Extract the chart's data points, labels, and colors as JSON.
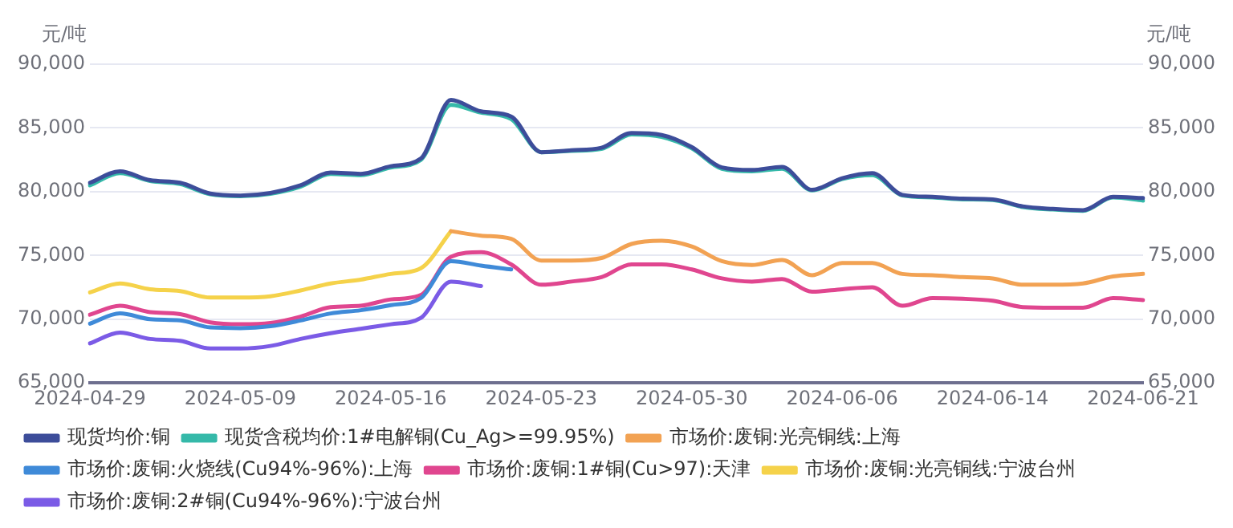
{
  "chart_data": {
    "type": "line",
    "ylabel": "元/吨",
    "y2label": "元/吨",
    "categories": [
      "2024-04-29",
      null,
      null,
      null,
      null,
      "2024-05-09",
      null,
      null,
      null,
      null,
      "2024-05-16",
      null,
      null,
      null,
      null,
      "2024-05-23",
      null,
      null,
      null,
      null,
      "2024-05-30",
      null,
      null,
      null,
      null,
      "2024-06-06",
      null,
      null,
      null,
      null,
      "2024-06-14",
      null,
      null,
      null,
      null,
      "2024-06-21"
    ],
    "ylim": [
      65000,
      90000
    ],
    "yticks": [
      {
        "value": 65000,
        "label": "65,000"
      },
      {
        "value": 70000,
        "label": "70,000"
      },
      {
        "value": 75000,
        "label": "75,000"
      },
      {
        "value": 80000,
        "label": "80,000"
      },
      {
        "value": 85000,
        "label": "85,000"
      },
      {
        "value": 90000,
        "label": "90,000"
      }
    ],
    "y2lim": [
      65000,
      90000
    ],
    "y2ticks": [
      {
        "value": 65000,
        "label": "65,000"
      },
      {
        "value": 70000,
        "label": "70,000"
      },
      {
        "value": 75000,
        "label": "75,000"
      },
      {
        "value": 80000,
        "label": "80,000"
      },
      {
        "value": 85000,
        "label": "85,000"
      },
      {
        "value": 90000,
        "label": "90,000"
      }
    ],
    "grid": "y",
    "legend": "bottom",
    "marker": "none",
    "line_style": "solid",
    "series": [
      {
        "name": "现货均价:铜",
        "color": "#3d4d9a",
        "values": [
          80700,
          81600,
          80900,
          80700,
          79850,
          79700,
          79900,
          80500,
          81500,
          81400,
          82000,
          82600,
          87200,
          86300,
          85900,
          83100,
          83250,
          83450,
          84600,
          84450,
          83500,
          81900,
          81700,
          81950,
          80150,
          81050,
          81450,
          79750,
          79600,
          79450,
          79400,
          78850,
          78650,
          78550,
          79600,
          79500
        ]
      },
      {
        "name": "现货含税均价:1#电解铜(Cu_Ag>=99.95%)",
        "color": "#35b9a9",
        "values": [
          80500,
          81460,
          80840,
          80600,
          79800,
          79650,
          79840,
          80400,
          81400,
          81300,
          81900,
          82500,
          86800,
          86200,
          85700,
          83100,
          83200,
          83350,
          84500,
          84300,
          83400,
          81800,
          81600,
          81800,
          80100,
          81000,
          81300,
          79700,
          79550,
          79400,
          79350,
          78800,
          78600,
          78500,
          79550,
          79300
        ]
      },
      {
        "name": "市场价:废铜:光亮铜线:上海",
        "color": "#f2a253",
        "values": [
          null,
          null,
          null,
          null,
          null,
          null,
          null,
          null,
          null,
          null,
          null,
          null,
          76900,
          76550,
          76300,
          74600,
          74600,
          74800,
          75900,
          76150,
          75700,
          74550,
          74250,
          74650,
          73450,
          74400,
          74400,
          73550,
          73450,
          73300,
          73200,
          72700,
          72700,
          72800,
          73350,
          73550
        ]
      },
      {
        "name": "市场价:废铜:火烧线(Cu94%-96%):上海",
        "color": "#3f8ad8",
        "values": [
          69650,
          70450,
          70000,
          69900,
          69350,
          69300,
          69450,
          69900,
          70450,
          70700,
          71100,
          71650,
          74550,
          74200,
          73900,
          null,
          null,
          null,
          null,
          null,
          null,
          null,
          null,
          null,
          null,
          null,
          null,
          null,
          null,
          null,
          null,
          null,
          null,
          null,
          null,
          null
        ]
      },
      {
        "name": "市场价:废铜:1#铜(Cu>97):天津",
        "color": "#e0468f",
        "values": [
          70350,
          71050,
          70550,
          70400,
          69750,
          69600,
          69700,
          70200,
          70950,
          71050,
          71550,
          71900,
          74900,
          75250,
          74300,
          72700,
          72950,
          73300,
          74300,
          74300,
          73900,
          73200,
          72950,
          73150,
          72150,
          72350,
          72500,
          71050,
          71650,
          71600,
          71450,
          70950,
          70900,
          70900,
          71650,
          71500
        ]
      },
      {
        "name": "市场价:废铜:光亮铜线:宁波台州",
        "color": "#f5d24a",
        "values": [
          72100,
          72800,
          72350,
          72200,
          71700,
          71700,
          71800,
          72250,
          72800,
          73100,
          73550,
          74000,
          76900,
          null,
          null,
          null,
          null,
          null,
          null,
          null,
          null,
          null,
          null,
          null,
          null,
          null,
          null,
          null,
          null,
          null,
          null,
          null,
          null,
          null,
          null,
          null
        ]
      },
      {
        "name": "市场价:废铜:2#铜(Cu94%-96%):宁波台州",
        "color": "#7b5be6",
        "values": [
          68100,
          68950,
          68450,
          68300,
          67700,
          67700,
          67900,
          68450,
          68900,
          69250,
          69600,
          70100,
          72950,
          72600,
          null,
          null,
          null,
          null,
          null,
          null,
          null,
          null,
          null,
          null,
          null,
          null,
          null,
          null,
          null,
          null,
          null,
          null,
          null,
          null,
          null,
          null
        ]
      }
    ]
  }
}
